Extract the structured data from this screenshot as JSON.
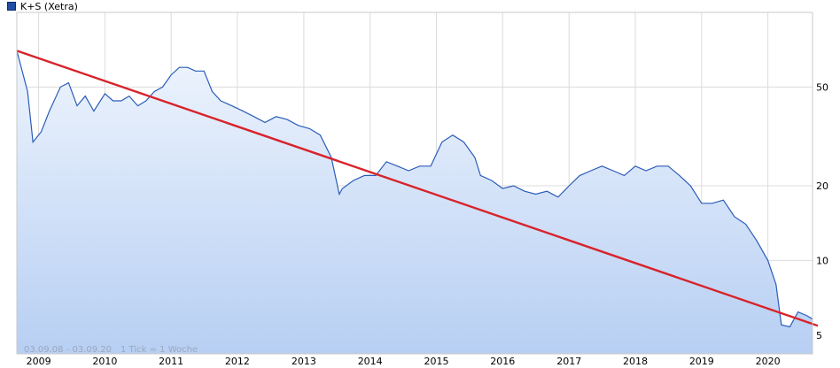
{
  "legend": {
    "label": "K+S (Xetra)"
  },
  "footnote": {
    "range": "03.09.08 - 03.09.20",
    "tick_info": "1 Tick = 1 Woche"
  },
  "colors": {
    "price_line": "#2b5cb8",
    "area_top": "#eef4fd",
    "area_bottom": "#b7cff3",
    "trend_line": "#d8232a",
    "grid": "#dcdcdc"
  },
  "chart_data": {
    "type": "line",
    "title": "",
    "xlabel": "",
    "ylabel": "",
    "scale": "log",
    "ylim": [
      4.2,
      100
    ],
    "x_ticks": [
      "2009",
      "2010",
      "2011",
      "2012",
      "2013",
      "2014",
      "2015",
      "2016",
      "2017",
      "2018",
      "2019",
      "2020"
    ],
    "y_ticks": [
      5,
      10,
      20,
      50
    ],
    "grid": true,
    "legend_position": "top-left",
    "series": [
      {
        "name": "K+S (Xetra)",
        "x": [
          "2008-09-03",
          "2008-11-01",
          "2008-12-01",
          "2009-01-15",
          "2009-03-01",
          "2009-05-01",
          "2009-06-15",
          "2009-08-01",
          "2009-09-15",
          "2009-11-01",
          "2010-01-01",
          "2010-02-15",
          "2010-04-01",
          "2010-05-15",
          "2010-07-01",
          "2010-08-15",
          "2010-10-01",
          "2010-11-15",
          "2011-01-01",
          "2011-02-15",
          "2011-04-01",
          "2011-05-15",
          "2011-07-01",
          "2011-08-15",
          "2011-10-01",
          "2011-12-01",
          "2012-02-01",
          "2012-04-01",
          "2012-06-01",
          "2012-08-01",
          "2012-10-01",
          "2012-12-01",
          "2013-02-01",
          "2013-04-01",
          "2013-06-01",
          "2013-07-15",
          "2013-08-01",
          "2013-10-01",
          "2013-12-01",
          "2014-02-01",
          "2014-04-01",
          "2014-06-01",
          "2014-08-01",
          "2014-10-01",
          "2014-12-01",
          "2015-02-01",
          "2015-04-01",
          "2015-06-01",
          "2015-08-01",
          "2015-09-01",
          "2015-11-01",
          "2016-01-01",
          "2016-03-01",
          "2016-05-01",
          "2016-07-01",
          "2016-09-01",
          "2016-11-01",
          "2017-01-01",
          "2017-03-01",
          "2017-05-01",
          "2017-07-01",
          "2017-09-01",
          "2017-11-01",
          "2018-01-01",
          "2018-03-01",
          "2018-05-01",
          "2018-07-01",
          "2018-09-01",
          "2018-11-01",
          "2019-01-01",
          "2019-03-01",
          "2019-05-01",
          "2019-07-01",
          "2019-09-01",
          "2019-11-01",
          "2020-01-01",
          "2020-02-15",
          "2020-03-15",
          "2020-05-01",
          "2020-06-15",
          "2020-08-01",
          "2020-09-03"
        ],
        "values": [
          70,
          48,
          30,
          33,
          40,
          50,
          52,
          42,
          46,
          40,
          47,
          44,
          44,
          46,
          42,
          44,
          48,
          50,
          56,
          60,
          60,
          58,
          58,
          48,
          44,
          42,
          40,
          38,
          36,
          38,
          37,
          35,
          34,
          32,
          26,
          18.5,
          19.5,
          21,
          22,
          22,
          25,
          24,
          23,
          24,
          24,
          30,
          32,
          30,
          26,
          22,
          21,
          19.5,
          20,
          19,
          18.5,
          19,
          18,
          20,
          22,
          23,
          24,
          23,
          22,
          24,
          23,
          24,
          24,
          22,
          20,
          17,
          17,
          17.5,
          15,
          14,
          12,
          10,
          8,
          5.5,
          5.4,
          6.2,
          6.0,
          5.8
        ]
      },
      {
        "name": "",
        "x": [
          "2008-09-03",
          "2020-09-03"
        ],
        "values": [
          70,
          5.5
        ]
      }
    ]
  }
}
